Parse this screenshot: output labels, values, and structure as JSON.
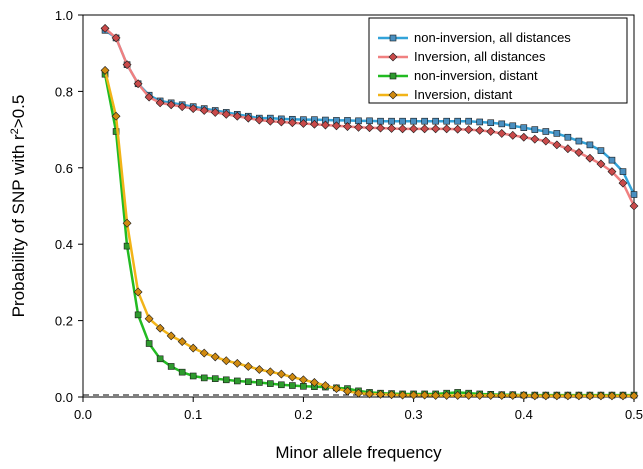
{
  "chart_data": {
    "type": "line",
    "xlabel": "Minor allele frequency",
    "ylabel": {
      "main": "Probability of SNP with r",
      "sup": "2",
      "suffix": ">0.5"
    },
    "xlim": [
      0.0,
      0.5
    ],
    "ylim": [
      0.0,
      1.0
    ],
    "x_ticks": [
      "0.0",
      "0.1",
      "0.2",
      "0.3",
      "0.4",
      "0.5"
    ],
    "y_ticks": [
      "0.0",
      "0.2",
      "0.4",
      "0.6",
      "0.8",
      "1.0"
    ],
    "grid": false,
    "legend_position": "top-right",
    "reference_line": {
      "y": 0.0,
      "style": "dashed"
    },
    "x": [
      0.02,
      0.03,
      0.04,
      0.05,
      0.06,
      0.07,
      0.08,
      0.09,
      0.1,
      0.11,
      0.12,
      0.13,
      0.14,
      0.15,
      0.16,
      0.17,
      0.18,
      0.19,
      0.2,
      0.21,
      0.22,
      0.23,
      0.24,
      0.25,
      0.26,
      0.27,
      0.28,
      0.29,
      0.3,
      0.31,
      0.32,
      0.33,
      0.34,
      0.35,
      0.36,
      0.37,
      0.38,
      0.39,
      0.4,
      0.41,
      0.42,
      0.43,
      0.44,
      0.45,
      0.46,
      0.47,
      0.48,
      0.49,
      0.5
    ],
    "series": [
      {
        "name": "non-inversion, all distances",
        "color": "#33a3d9",
        "marker": "square",
        "marker_color": "#4a8fc0",
        "values": [
          0.96,
          0.94,
          0.87,
          0.82,
          0.79,
          0.775,
          0.77,
          0.765,
          0.76,
          0.755,
          0.75,
          0.745,
          0.74,
          0.735,
          0.73,
          0.73,
          0.728,
          0.727,
          0.726,
          0.726,
          0.725,
          0.724,
          0.724,
          0.723,
          0.723,
          0.722,
          0.722,
          0.722,
          0.722,
          0.722,
          0.722,
          0.722,
          0.722,
          0.722,
          0.72,
          0.718,
          0.715,
          0.71,
          0.705,
          0.7,
          0.695,
          0.69,
          0.68,
          0.67,
          0.66,
          0.645,
          0.62,
          0.59,
          0.53
        ]
      },
      {
        "name": "Inversion, all distances",
        "color": "#f08080",
        "marker": "diamond",
        "marker_color": "#c94a4a",
        "values": [
          0.965,
          0.94,
          0.87,
          0.82,
          0.785,
          0.77,
          0.765,
          0.76,
          0.755,
          0.75,
          0.745,
          0.74,
          0.735,
          0.73,
          0.725,
          0.722,
          0.72,
          0.718,
          0.716,
          0.714,
          0.712,
          0.71,
          0.708,
          0.706,
          0.705,
          0.704,
          0.703,
          0.702,
          0.702,
          0.702,
          0.702,
          0.702,
          0.701,
          0.7,
          0.698,
          0.695,
          0.69,
          0.685,
          0.68,
          0.675,
          0.67,
          0.66,
          0.65,
          0.64,
          0.625,
          0.61,
          0.59,
          0.56,
          0.5
        ]
      },
      {
        "name": "non-inversion, distant",
        "color": "#22bb22",
        "marker": "square",
        "marker_color": "#2e9a2e",
        "values": [
          0.845,
          0.695,
          0.395,
          0.215,
          0.14,
          0.1,
          0.08,
          0.065,
          0.055,
          0.05,
          0.048,
          0.045,
          0.042,
          0.04,
          0.038,
          0.035,
          0.032,
          0.03,
          0.028,
          0.027,
          0.026,
          0.024,
          0.022,
          0.016,
          0.012,
          0.01,
          0.009,
          0.008,
          0.008,
          0.008,
          0.008,
          0.01,
          0.012,
          0.01,
          0.008,
          0.007,
          0.006,
          0.006,
          0.005,
          0.005,
          0.005,
          0.005,
          0.005,
          0.005,
          0.005,
          0.005,
          0.005,
          0.005,
          0.005
        ]
      },
      {
        "name": "Inversion, distant",
        "color": "#f2b418",
        "marker": "diamond",
        "marker_color": "#d08a10",
        "values": [
          0.855,
          0.735,
          0.455,
          0.275,
          0.205,
          0.18,
          0.16,
          0.145,
          0.128,
          0.115,
          0.105,
          0.095,
          0.088,
          0.08,
          0.072,
          0.066,
          0.06,
          0.052,
          0.045,
          0.038,
          0.03,
          0.022,
          0.015,
          0.01,
          0.008,
          0.007,
          0.006,
          0.005,
          0.005,
          0.005,
          0.004,
          0.004,
          0.004,
          0.004,
          0.004,
          0.004,
          0.004,
          0.004,
          0.004,
          0.003,
          0.003,
          0.003,
          0.003,
          0.003,
          0.003,
          0.003,
          0.003,
          0.003,
          0.003
        ]
      }
    ]
  }
}
